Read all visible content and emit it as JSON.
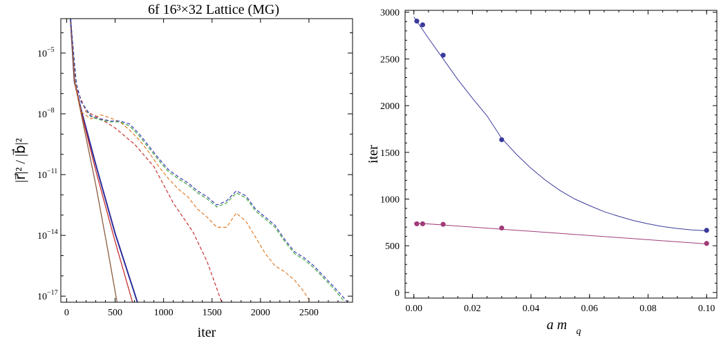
{
  "chart_data": [
    {
      "type": "line",
      "title": "6f 16³×32 Lattice (MG)",
      "xlabel": "iter",
      "ylabel": "|r⃗|² / |b⃗|²",
      "xlim": [
        -60,
        2950
      ],
      "ylim_log10": [
        -17.3,
        -3.3
      ],
      "yscale": "log",
      "x_ticks": [
        0,
        500,
        1000,
        1500,
        2000,
        2500
      ],
      "x_tick_labels": [
        "0",
        "500",
        "1000",
        "1500",
        "2000",
        "2500"
      ],
      "y_ticks_log10": [
        -5,
        -8,
        -11,
        -14,
        -17
      ],
      "y_tick_labels": [
        "10",
        "10",
        "10",
        "10",
        "10"
      ],
      "y_tick_exponents": [
        "−5",
        "−8",
        "−11",
        "−14",
        "−17"
      ],
      "grid": false,
      "series": [
        {
          "color": "#2b2b99",
          "dash": "solid",
          "x": [
            40,
            80,
            150,
            300,
            500,
            730
          ],
          "y": [
            -3.3,
            -6.4,
            -7.8,
            -10.5,
            -13.9,
            -17.3
          ]
        },
        {
          "color": "#c83030",
          "dash": "solid",
          "x": [
            40,
            80,
            150,
            300,
            500,
            680
          ],
          "y": [
            -3.3,
            -6.4,
            -7.9,
            -10.8,
            -14.3,
            -17.3
          ]
        },
        {
          "color": "#8b5a3c",
          "dash": "solid",
          "x": [
            40,
            80,
            150,
            300,
            420,
            520
          ],
          "y": [
            -3.3,
            -6.4,
            -8.0,
            -11.5,
            -14.6,
            -17.3
          ]
        },
        {
          "color": "#c83030",
          "dash": "dashed",
          "x": [
            40,
            100,
            200,
            300,
            500,
            700,
            900,
            1100,
            1300,
            1450,
            1600
          ],
          "y": [
            -3.3,
            -6.7,
            -7.9,
            -8.1,
            -8.7,
            -9.5,
            -10.6,
            -12.4,
            -13.8,
            -15.3,
            -17.3
          ]
        },
        {
          "color": "#e07b28",
          "dash": "dashed",
          "x": [
            40,
            100,
            150,
            250,
            350,
            450,
            550,
            650,
            750,
            850,
            950,
            1050,
            1150,
            1250,
            1350,
            1450,
            1550,
            1650,
            1750,
            1850,
            1950,
            2050,
            2150,
            2250,
            2350,
            2450,
            2520
          ],
          "y": [
            -3.3,
            -6.8,
            -7.9,
            -8.25,
            -8.05,
            -8.2,
            -8.4,
            -8.8,
            -9.3,
            -9.9,
            -10.6,
            -11.2,
            -11.7,
            -12.1,
            -12.7,
            -13.1,
            -13.6,
            -13.6,
            -12.9,
            -13.3,
            -14.1,
            -14.9,
            -15.5,
            -15.8,
            -16.2,
            -16.8,
            -17.3
          ]
        },
        {
          "color": "#3aa63a",
          "dash": "dashed",
          "x": [
            40,
            100,
            150,
            250,
            350,
            450,
            550,
            650,
            750,
            850,
            950,
            1050,
            1150,
            1250,
            1350,
            1450,
            1550,
            1650,
            1750,
            1850,
            1950,
            2050,
            2150,
            2250,
            2350,
            2450,
            2550,
            2650,
            2750,
            2870
          ],
          "y": [
            -3.3,
            -6.5,
            -7.4,
            -8.15,
            -8.3,
            -8.4,
            -8.4,
            -8.6,
            -9.1,
            -9.7,
            -10.3,
            -10.85,
            -11.2,
            -11.5,
            -11.9,
            -12.2,
            -12.6,
            -12.4,
            -11.9,
            -12.15,
            -12.8,
            -13.2,
            -13.6,
            -14.3,
            -14.9,
            -15.2,
            -15.6,
            -16.1,
            -16.6,
            -17.3
          ]
        },
        {
          "color": "#3a3ab8",
          "dash": "dashed",
          "x": [
            40,
            100,
            150,
            250,
            350,
            450,
            550,
            650,
            750,
            850,
            950,
            1050,
            1150,
            1250,
            1350,
            1450,
            1550,
            1650,
            1750,
            1850,
            1950,
            2050,
            2150,
            2250,
            2350,
            2450,
            2550,
            2650,
            2750,
            2900
          ],
          "y": [
            -3.3,
            -6.5,
            -7.4,
            -8.1,
            -8.25,
            -8.35,
            -8.35,
            -8.5,
            -9.0,
            -9.6,
            -10.2,
            -10.75,
            -11.1,
            -11.4,
            -11.8,
            -12.1,
            -12.5,
            -12.3,
            -11.8,
            -12.05,
            -12.7,
            -13.1,
            -13.5,
            -14.2,
            -14.8,
            -15.1,
            -15.5,
            -16.0,
            -16.5,
            -17.3
          ]
        }
      ]
    },
    {
      "type": "scatter",
      "title": "",
      "xlabel": "a m",
      "xlabel_sub": "q",
      "ylabel": "iter",
      "xlim": [
        -0.003,
        0.1035
      ],
      "ylim": [
        -60,
        3020
      ],
      "x_ticks": [
        0.0,
        0.02,
        0.04,
        0.06,
        0.08,
        0.1
      ],
      "x_tick_labels": [
        "0.00",
        "0.02",
        "0.04",
        "0.06",
        "0.08",
        "0.10"
      ],
      "y_ticks": [
        0,
        500,
        1000,
        1500,
        2000,
        2500,
        3000
      ],
      "y_tick_labels": [
        "0",
        "500",
        "1000",
        "1500",
        "2000",
        "2500",
        "3000"
      ],
      "grid": false,
      "series": [
        {
          "color": "#3a3a9c",
          "x": [
            0.001,
            0.003,
            0.01,
            0.03,
            0.1
          ],
          "y": [
            2905,
            2865,
            2540,
            1635,
            665
          ],
          "fit_x": [
            0.0,
            0.005,
            0.01,
            0.015,
            0.02,
            0.025,
            0.03,
            0.035,
            0.04,
            0.045,
            0.05,
            0.055,
            0.06,
            0.065,
            0.07,
            0.075,
            0.08,
            0.085,
            0.09,
            0.095,
            0.1
          ],
          "fit_y": [
            2950,
            2720,
            2500,
            2280,
            2080,
            1890,
            1650,
            1480,
            1330,
            1200,
            1090,
            1000,
            930,
            865,
            815,
            770,
            735,
            705,
            685,
            670,
            660
          ]
        },
        {
          "color": "#a03a78",
          "x": [
            0.001,
            0.003,
            0.01,
            0.03,
            0.1
          ],
          "y": [
            735,
            735,
            730,
            690,
            525
          ],
          "fit_x": [
            0.0,
            0.1
          ],
          "fit_y": [
            745,
            520
          ]
        }
      ]
    }
  ]
}
